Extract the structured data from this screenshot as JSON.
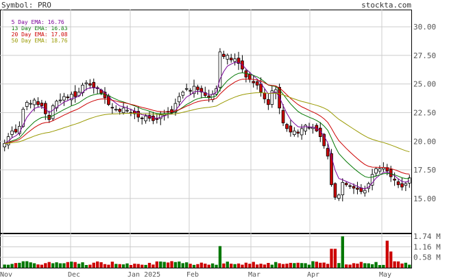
{
  "header": {
    "symbol_label": "Symbol:",
    "symbol": "PRO",
    "site": "stockta.com"
  },
  "legend": [
    {
      "label": "5 Day EMA:",
      "value": "16.76",
      "color": "#7a0099"
    },
    {
      "label": "13 Day EMA:",
      "value": "16.83",
      "color": "#007700"
    },
    {
      "label": "20 Day EMA:",
      "value": "17.08",
      "color": "#cc0000"
    },
    {
      "label": "50 Day EMA:",
      "value": "18.76",
      "color": "#999900"
    }
  ],
  "colors": {
    "up_candle": "#ffffff",
    "down_candle": "#cc0000",
    "candle_outline": "#000000",
    "volume_up": "#007700",
    "volume_down": "#cc0000",
    "grid": "#cccccc",
    "axis_text": "#555555"
  },
  "chart_data": {
    "type": "candlestick",
    "price_axis": {
      "ticks": [
        "30.00",
        "27.50",
        "25.00",
        "22.50",
        "20.00",
        "17.50",
        "15.00"
      ],
      "ylim": [
        12.0,
        31.5
      ]
    },
    "volume_axis": {
      "ticks": [
        "1.74 M",
        "1.16 M",
        "0.58 M"
      ],
      "ylim": [
        0,
        1.9
      ]
    },
    "x_labels": [
      "Nov",
      "Dec",
      "Jan 2025",
      "Feb",
      "Mar",
      "Apr",
      "May"
    ],
    "ema_values_last": {
      "ema5": 16.76,
      "ema13": 16.83,
      "ema20": 17.08,
      "ema50": 18.76
    },
    "close": [
      19.8,
      20.4,
      20.9,
      20.8,
      21.3,
      22.8,
      23.4,
      23.3,
      23.6,
      23.2,
      23.1,
      22.4,
      21.9,
      23.1,
      23.5,
      23.6,
      23.9,
      23.8,
      24.1,
      23.9,
      24.3,
      24.9,
      25.1,
      24.9,
      24.7,
      24.6,
      24.2,
      23.8,
      23.2,
      22.9,
      22.8,
      22.6,
      22.9,
      22.7,
      22.5,
      22.4,
      22.1,
      22.0,
      22.2,
      22.0,
      21.8,
      21.9,
      22.3,
      22.4,
      22.6,
      22.5,
      23.3,
      23.9,
      24.3,
      24.6,
      24.4,
      24.8,
      24.5,
      24.3,
      24.0,
      23.8,
      24.1,
      24.6,
      27.8,
      27.4,
      27.5,
      27.1,
      27.2,
      26.8,
      26.3,
      25.6,
      25.4,
      25.1,
      24.9,
      24.3,
      23.7,
      23.2,
      24.4,
      24.5,
      22.9,
      21.6,
      21.1,
      20.8,
      20.9,
      20.7,
      21.1,
      21.4,
      21.2,
      21.2,
      20.9,
      20.4,
      19.6,
      18.7,
      16.2,
      15.1,
      15.3,
      16.4,
      16.2,
      16.1,
      15.9,
      15.8,
      15.6,
      15.7,
      16.3,
      17.1,
      17.6,
      17.6,
      17.7,
      17.4,
      16.9,
      16.6,
      16.2,
      16.0,
      16.3,
      16.8
    ]
  }
}
